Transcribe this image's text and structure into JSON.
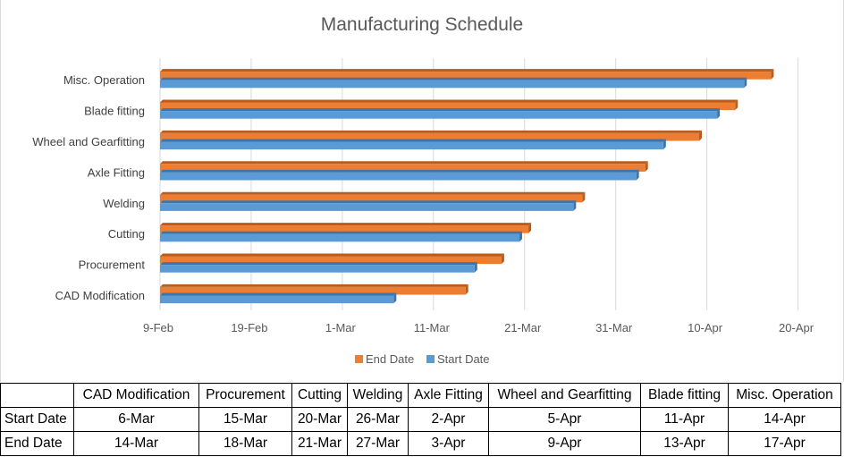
{
  "chart_data": {
    "type": "bar",
    "orientation": "horizontal",
    "title": "Manufacturing Schedule",
    "categories": [
      "CAD Modification",
      "Procurement",
      "Cutting",
      "Welding",
      "Axle Fitting",
      "Wheel and Gearfitting",
      "Blade fitting",
      "Misc. Operation"
    ],
    "series": [
      {
        "name": "Start Date",
        "color": "#5b9bd5",
        "values": [
          "2024-03-06",
          "2024-03-15",
          "2024-03-20",
          "2024-03-26",
          "2024-04-02",
          "2024-04-05",
          "2024-04-11",
          "2024-04-14"
        ]
      },
      {
        "name": "End Date",
        "color": "#ed7d31",
        "values": [
          "2024-03-14",
          "2024-03-18",
          "2024-03-21",
          "2024-03-27",
          "2024-04-03",
          "2024-04-09",
          "2024-04-13",
          "2024-04-17"
        ]
      }
    ],
    "x_ticks": [
      "9-Feb",
      "19-Feb",
      "1-Mar",
      "11-Mar",
      "21-Mar",
      "31-Mar",
      "10-Apr",
      "20-Apr"
    ],
    "xlim": [
      "2024-02-09",
      "2024-04-20"
    ],
    "grid": true,
    "legend": "bottom",
    "legend_order": [
      "End Date",
      "Start Date"
    ]
  },
  "table": {
    "headers": [
      "",
      "CAD Modification",
      "Procurement",
      "Cutting",
      "Welding",
      "Axle Fitting",
      "Wheel and Gearfitting",
      "Blade fitting",
      "Misc. Operation"
    ],
    "rows": [
      {
        "label": "Start Date",
        "cells": [
          "6-Mar",
          "15-Mar",
          "20-Mar",
          "26-Mar",
          "2-Apr",
          "5-Apr",
          "11-Apr",
          "14-Apr"
        ]
      },
      {
        "label": "End Date",
        "cells": [
          "14-Mar",
          "18-Mar",
          "21-Mar",
          "27-Mar",
          "3-Apr",
          "9-Apr",
          "13-Apr",
          "17-Apr"
        ]
      }
    ]
  }
}
